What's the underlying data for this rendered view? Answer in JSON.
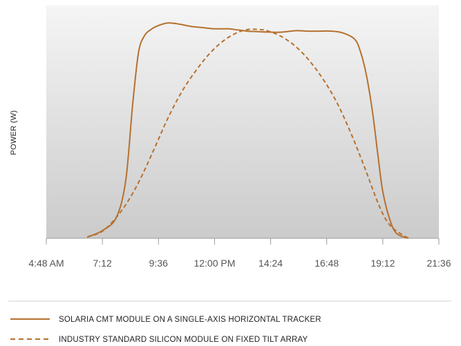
{
  "chart_data": {
    "type": "line",
    "title": "",
    "xlabel": "",
    "ylabel": "POWER (W)",
    "x_ticks": [
      "4:48 AM",
      "7:12",
      "9:36",
      "12:00 PM",
      "14:24",
      "16:48",
      "19:12",
      "21:36"
    ],
    "xlim_hours": [
      4.8,
      21.6
    ],
    "y_ticks_shown": false,
    "grid": false,
    "legend": "bottom",
    "series": [
      {
        "name": "SOLARIA CMT MODULE ON A SINGLE-AXIS HORIZONTAL TRACKER",
        "style": "solid",
        "color": "#B5702E",
        "x_hours": [
          6.55,
          7.2,
          7.8,
          8.2,
          8.5,
          8.75,
          9.0,
          9.25,
          9.5,
          10.0,
          10.5,
          11.0,
          11.5,
          12.0,
          12.6,
          13.0,
          13.4,
          13.8,
          14.24,
          14.7,
          15.0,
          15.5,
          16.0,
          16.48,
          17.0,
          17.5,
          18.0,
          18.25,
          18.5,
          18.75,
          19.0,
          19.2,
          19.5,
          19.8,
          20.3
        ],
        "values": [
          0.5,
          3.3,
          9.0,
          25.0,
          58.0,
          80.0,
          87.0,
          89.5,
          91.0,
          92.5,
          92.0,
          91.0,
          90.5,
          90.0,
          90.0,
          89.5,
          89.0,
          88.8,
          88.6,
          88.5,
          88.7,
          89.2,
          89.0,
          89.0,
          89.0,
          88.2,
          85.5,
          80.0,
          70.0,
          55.0,
          35.0,
          20.0,
          8.0,
          2.0,
          0.0
        ]
      },
      {
        "name": "INDUSTRY STANDARD SILICON MODULE ON FIXED TILT ARRAY",
        "style": "dashed",
        "color": "#B5702E",
        "x_hours": [
          6.55,
          7.2,
          7.8,
          8.3,
          8.8,
          9.4,
          10.0,
          10.6,
          11.2,
          11.8,
          12.4,
          13.0,
          13.5,
          14.0,
          14.24,
          14.8,
          15.4,
          16.0,
          16.6,
          17.2,
          17.8,
          18.4,
          19.0,
          19.4,
          19.8,
          20.3
        ],
        "values": [
          0.5,
          3.0,
          9.0,
          16.0,
          25.0,
          38.0,
          51.5,
          63.0,
          72.0,
          79.5,
          85.0,
          88.5,
          89.8,
          89.6,
          89.2,
          87.0,
          83.0,
          77.0,
          69.0,
          59.0,
          46.0,
          31.0,
          15.0,
          7.0,
          3.0,
          0.0
        ]
      }
    ]
  }
}
